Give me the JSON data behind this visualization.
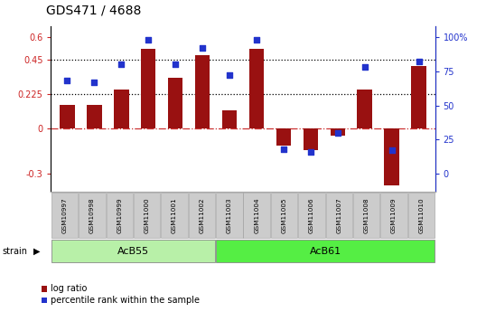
{
  "title": "GDS471 / 4688",
  "samples": [
    "GSM10997",
    "GSM10998",
    "GSM10999",
    "GSM11000",
    "GSM11001",
    "GSM11002",
    "GSM11003",
    "GSM11004",
    "GSM11005",
    "GSM11006",
    "GSM11007",
    "GSM11008",
    "GSM11009",
    "GSM11010"
  ],
  "log_ratio": [
    0.155,
    0.155,
    0.255,
    0.525,
    0.335,
    0.48,
    0.115,
    0.525,
    -0.115,
    -0.145,
    -0.05,
    0.255,
    -0.375,
    0.41
  ],
  "percentile": [
    68,
    67,
    80,
    98,
    80,
    92,
    72,
    98,
    18,
    16,
    30,
    78,
    17,
    82
  ],
  "groups": [
    {
      "label": "AcB55",
      "start": 0,
      "end": 6,
      "color": "#b8f0a8"
    },
    {
      "label": "AcB61",
      "start": 6,
      "end": 14,
      "color": "#55ee44"
    }
  ],
  "bar_color": "#991111",
  "dot_color": "#2233cc",
  "left_yticks": [
    -0.3,
    0,
    0.225,
    0.45,
    0.6
  ],
  "left_ylim": [
    -0.42,
    0.67
  ],
  "right_yticks": [
    0,
    25,
    50,
    75,
    100
  ],
  "hline_y": [
    0.225,
    0.45
  ],
  "zero_color": "#cc3333",
  "dot_line_color": "black",
  "legend_labels": [
    "log ratio",
    "percentile rank within the sample"
  ],
  "bar_color_legend": "#aa2222",
  "dot_color_legend": "#2233cc",
  "acb55_color": "#c8f0b0",
  "acb61_color": "#44dd33"
}
